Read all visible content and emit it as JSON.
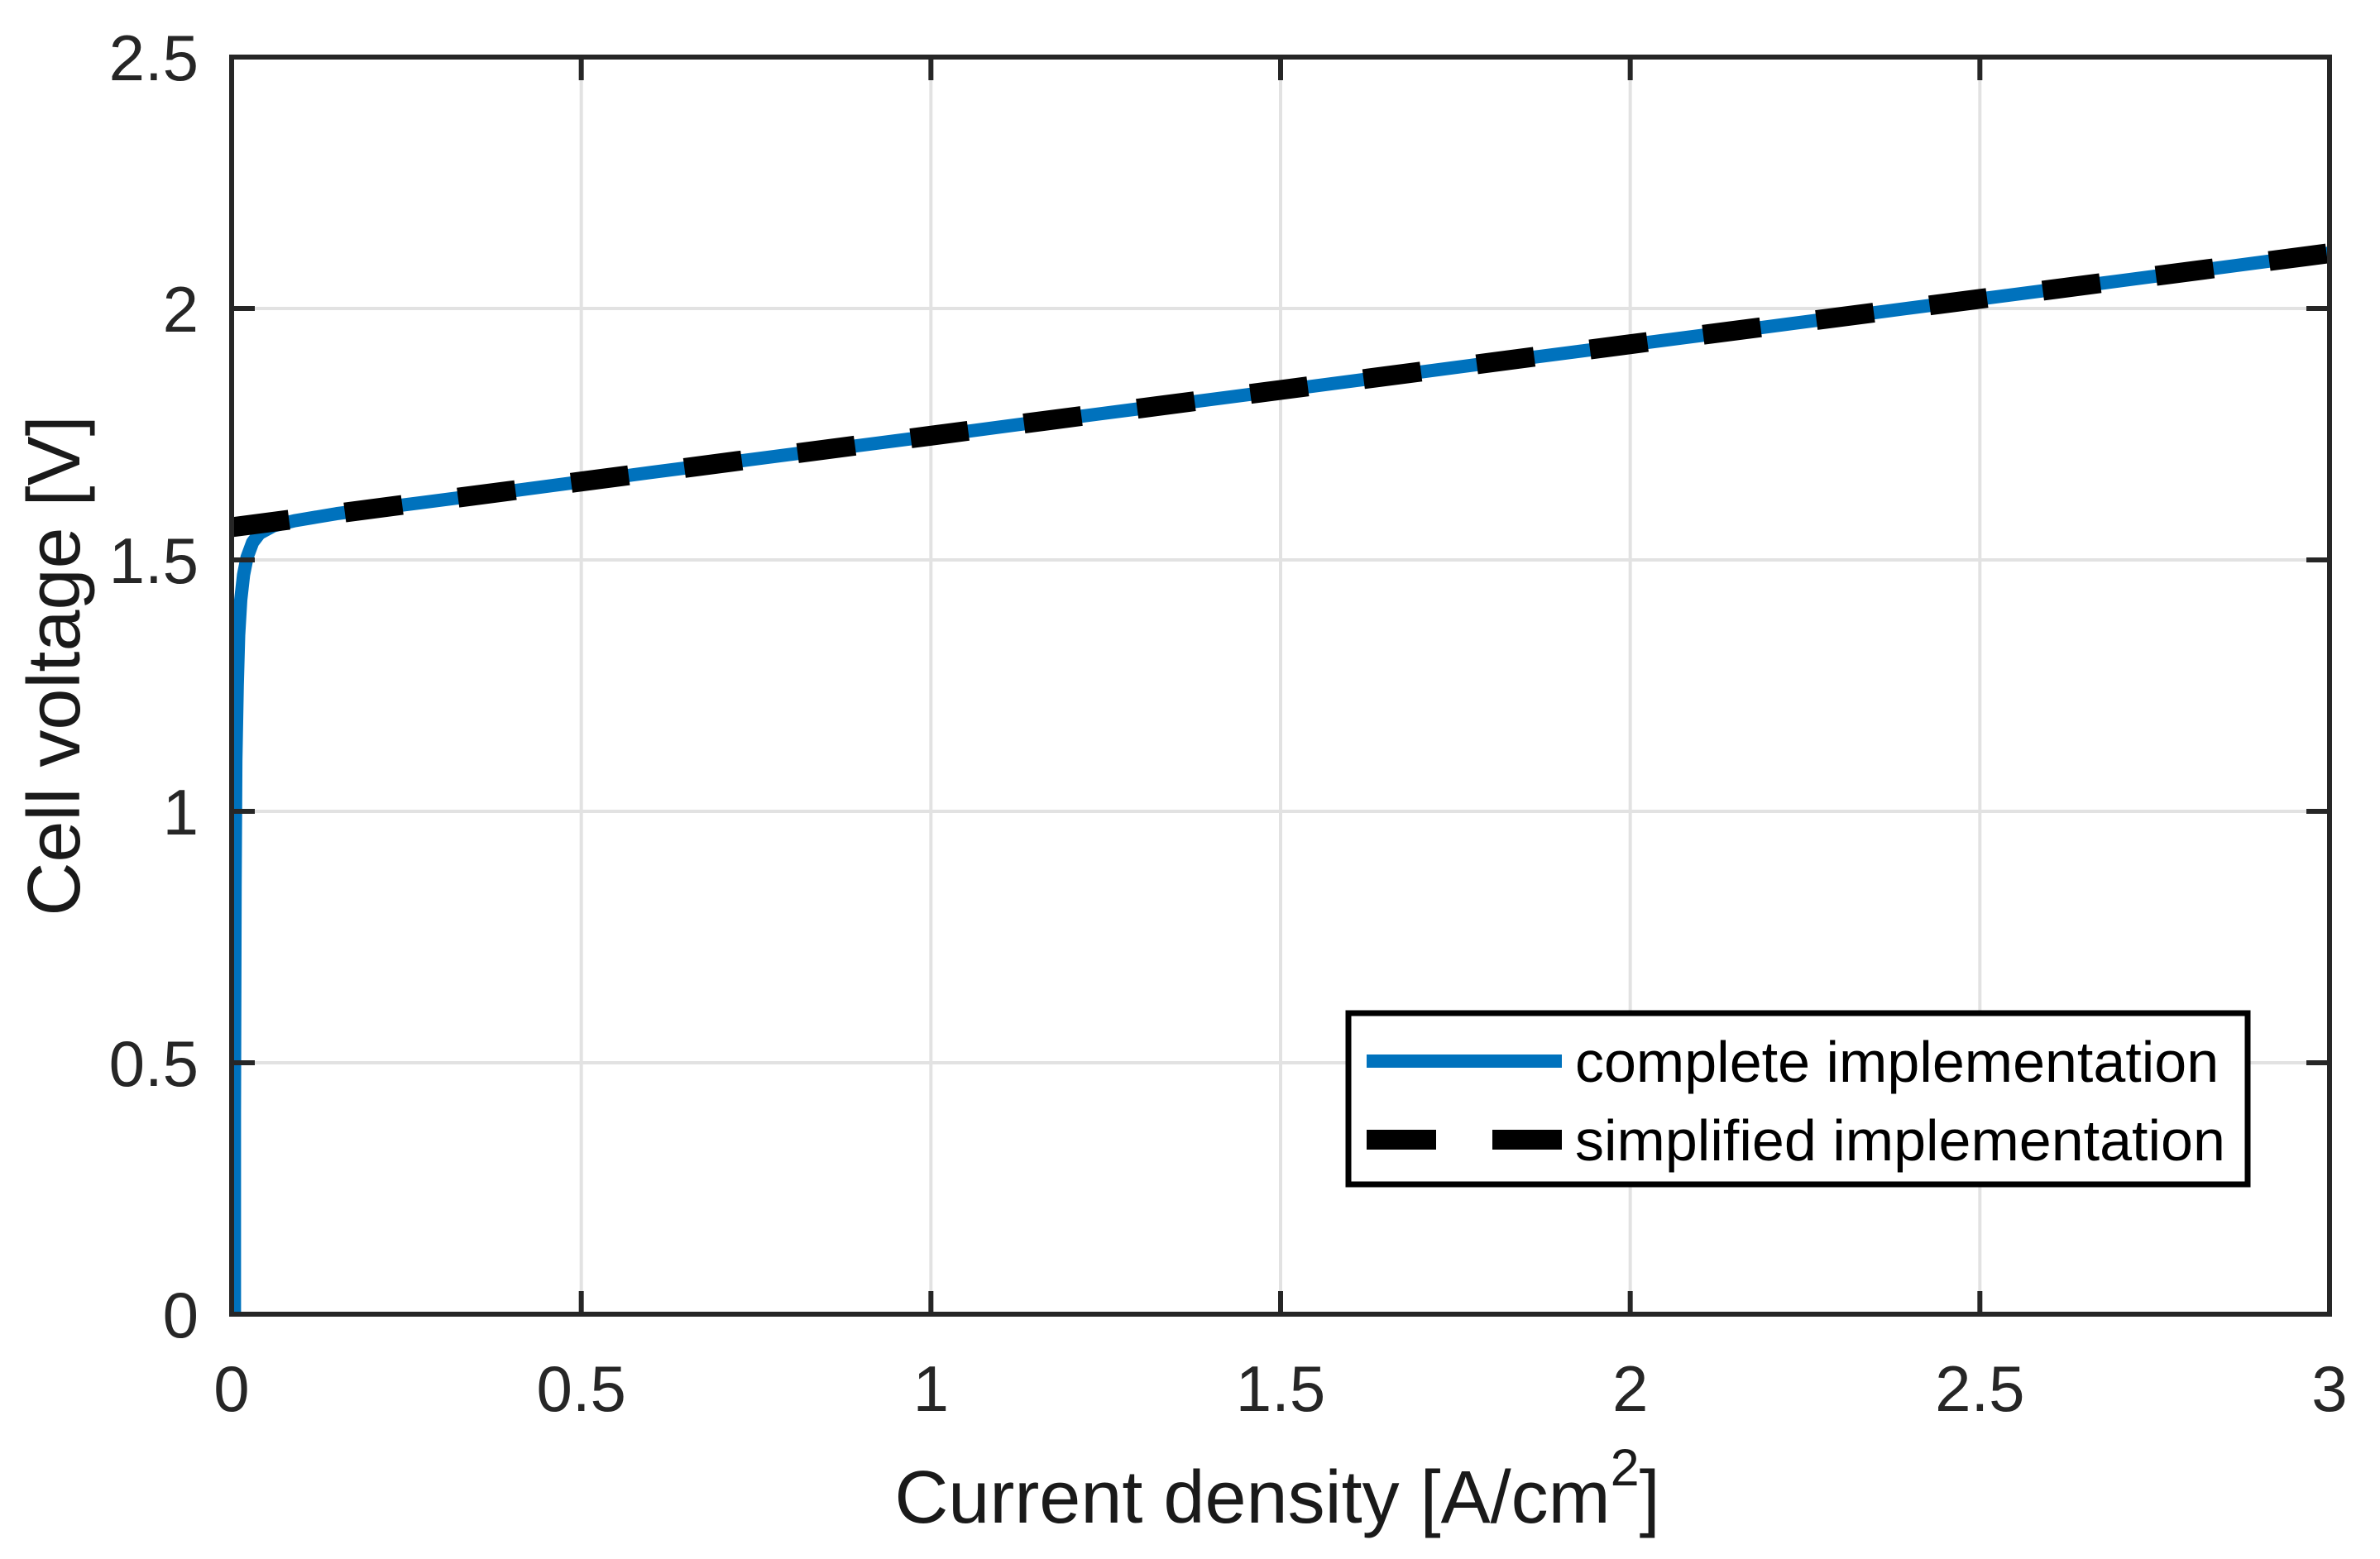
{
  "figure": {
    "background_color": "#ffffff"
  },
  "chart_data": {
    "type": "line",
    "title": "",
    "xlabel": "Current density [A/cm²]",
    "xlabel_parts": {
      "pre": "Current density [A/cm",
      "sup": "2",
      "post": "]"
    },
    "ylabel": "Cell voltage [V]",
    "xlim": [
      0,
      3
    ],
    "ylim": [
      0,
      2.5
    ],
    "xticks": [
      0,
      0.5,
      1,
      1.5,
      2,
      2.5,
      3
    ],
    "xtick_labels": [
      "0",
      "0.5",
      "1",
      "1.5",
      "2",
      "2.5",
      "3"
    ],
    "yticks": [
      0,
      0.5,
      1,
      1.5,
      2,
      2.5
    ],
    "ytick_labels": [
      "0",
      "0.5",
      "1",
      "1.5",
      "2",
      "2.5"
    ],
    "grid": true,
    "grid_color": "#E2E2E2",
    "axis_color": "#262626",
    "tick_length": 28,
    "legend": {
      "location": "lower-right-inside",
      "border": true,
      "entries": [
        "complete implementation",
        "simplified implementation"
      ]
    },
    "series": [
      {
        "name": "complete implementation",
        "color": "#0072BD",
        "line_style": "solid",
        "line_width": 16,
        "points": [
          [
            0.004,
            0
          ],
          [
            0.004,
            0.4
          ],
          [
            0.005,
            0.85
          ],
          [
            0.006,
            1.1
          ],
          [
            0.008,
            1.25
          ],
          [
            0.01,
            1.35
          ],
          [
            0.013,
            1.42
          ],
          [
            0.017,
            1.47
          ],
          [
            0.022,
            1.505
          ],
          [
            0.03,
            1.535
          ],
          [
            0.04,
            1.553
          ],
          [
            0.06,
            1.568
          ],
          [
            0.09,
            1.578
          ],
          [
            0.15,
            1.592
          ],
          [
            0.25,
            1.61
          ],
          [
            0.4,
            1.637
          ],
          [
            0.6,
            1.674
          ],
          [
            0.8,
            1.71
          ],
          [
            1.0,
            1.746
          ],
          [
            1.2,
            1.783
          ],
          [
            1.5,
            1.837
          ],
          [
            1.8,
            1.892
          ],
          [
            2.1,
            1.946
          ],
          [
            2.4,
            2.001
          ],
          [
            2.7,
            2.055
          ],
          [
            3.0,
            2.11
          ]
        ]
      },
      {
        "name": "simplified implementation",
        "color": "#000000",
        "line_style": "dashed",
        "line_width": 24,
        "dash_pattern": [
          70,
          68
        ],
        "points": [
          [
            0,
            1.565
          ],
          [
            0.5,
            1.656
          ],
          [
            1.0,
            1.747
          ],
          [
            1.5,
            1.838
          ],
          [
            2.0,
            1.929
          ],
          [
            2.5,
            2.019
          ],
          [
            3.0,
            2.11
          ]
        ]
      }
    ]
  }
}
